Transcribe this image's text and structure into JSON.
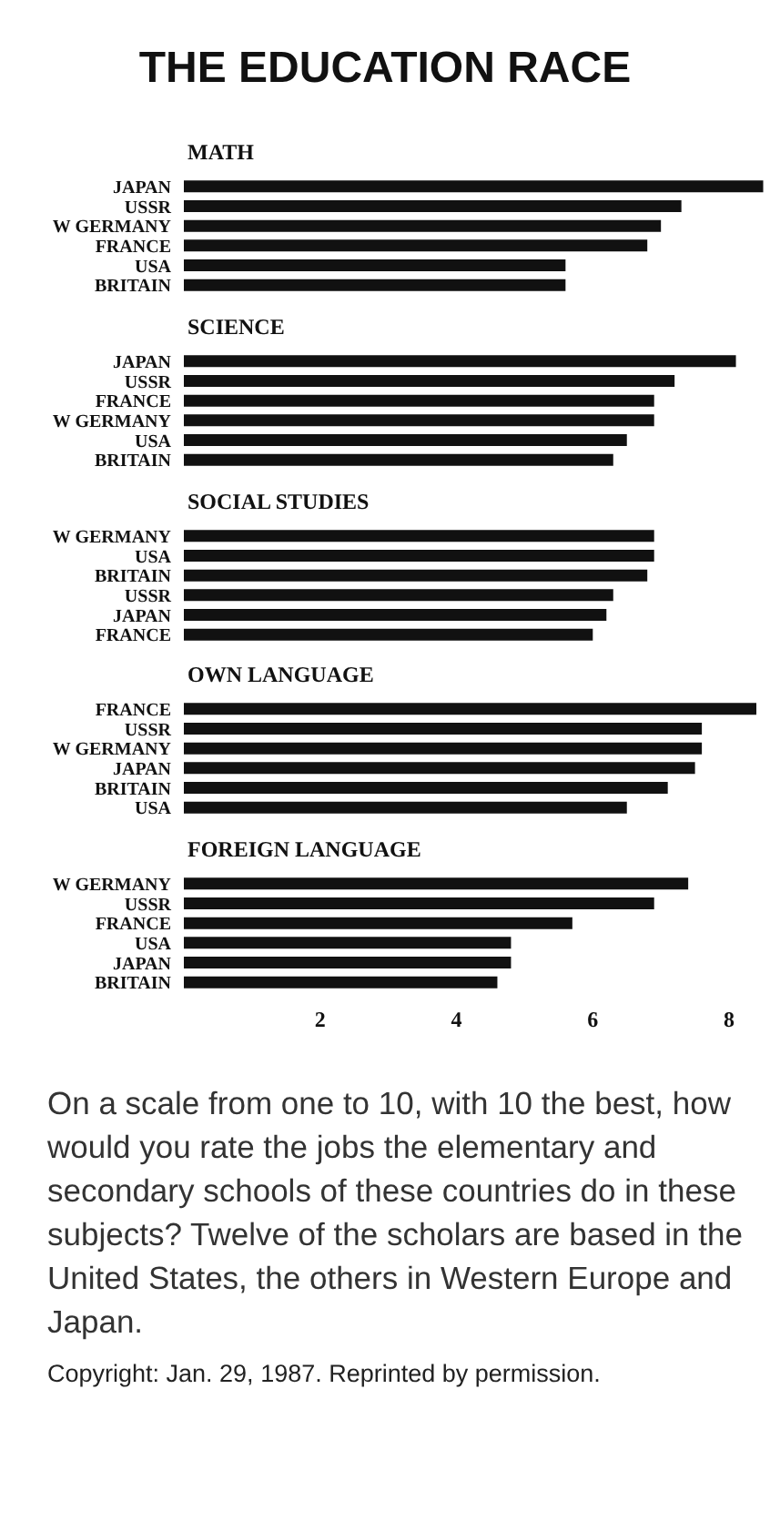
{
  "chart_data": [
    {
      "type": "bar",
      "orientation": "horizontal",
      "title": "THE EDUCATION RACE",
      "subtitle": "MATH",
      "categories": [
        "JAPAN",
        "USSR",
        "W GERMANY",
        "FRANCE",
        "USA",
        "BRITAIN"
      ],
      "values": [
        8.5,
        7.3,
        7.0,
        6.8,
        5.6,
        5.6
      ],
      "color": "#111111",
      "xlim": [
        0,
        8.6
      ],
      "tick_labels": "y"
    },
    {
      "type": "bar",
      "orientation": "horizontal",
      "title": "SCIENCE",
      "categories": [
        "JAPAN",
        "USSR",
        "FRANCE",
        "W GERMANY",
        "USA",
        "BRITAIN"
      ],
      "values": [
        8.1,
        7.2,
        6.9,
        6.9,
        6.5,
        6.3
      ],
      "color": "#111111",
      "xlim": [
        0,
        8.6
      ],
      "tick_labels": "y"
    },
    {
      "type": "bar",
      "orientation": "horizontal",
      "title": "SOCIAL STUDIES",
      "categories": [
        "W GERMANY",
        "USA",
        "BRITAIN",
        "USSR",
        "JAPAN",
        "FRANCE"
      ],
      "values": [
        6.9,
        6.9,
        6.8,
        6.3,
        6.2,
        6.0
      ],
      "color": "#111111",
      "xlim": [
        0,
        8.6
      ],
      "tick_labels": "y"
    },
    {
      "type": "bar",
      "orientation": "horizontal",
      "title": "OWN LANGUAGE",
      "categories": [
        "FRANCE",
        "USSR",
        "W GERMANY",
        "JAPAN",
        "BRITAIN",
        "USA"
      ],
      "values": [
        8.4,
        7.6,
        7.6,
        7.5,
        7.1,
        6.5
      ],
      "color": "#111111",
      "xlim": [
        0,
        8.6
      ],
      "tick_labels": "y"
    },
    {
      "type": "bar",
      "orientation": "horizontal",
      "title": "FOREIGN LANGUAGE",
      "categories": [
        "W GERMANY",
        "USSR",
        "FRANCE",
        "USA",
        "JAPAN",
        "BRITAIN"
      ],
      "values": [
        7.4,
        6.9,
        5.7,
        4.8,
        4.8,
        4.6
      ],
      "color": "#111111",
      "xlim": [
        0,
        8.6
      ],
      "xticks": [
        2,
        4,
        6,
        8
      ],
      "annotations": [
        "On a scale from one to 10, with 10 the best, how would you rate the jobs the elementary and secondary schools of these countries do in these subjects? Twelve of the scholars are based in the United States, the others in Western Europe and Japan.",
        "Copyright: Jan. 29, 1987. Reprinted by permission."
      ]
    }
  ]
}
